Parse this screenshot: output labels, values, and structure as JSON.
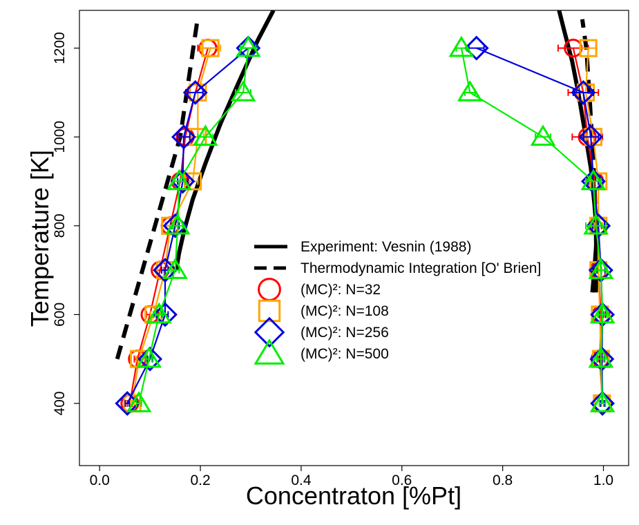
{
  "chart_data": {
    "type": "line",
    "title": "",
    "xlabel": "Concentraton [%Pt]",
    "ylabel": "Temperature [K]",
    "xlim": [
      -0.04,
      1.05
    ],
    "ylim": [
      260,
      1285
    ],
    "xticks": [
      0.0,
      0.2,
      0.4,
      0.6,
      0.8,
      1.0
    ],
    "xtick_labels": [
      "0.0",
      "0.2",
      "0.4",
      "0.6",
      "0.8",
      "1.0"
    ],
    "yticks": [
      400,
      600,
      800,
      1000,
      1200
    ],
    "ytick_labels": [
      "400",
      "600",
      "800",
      "1000",
      "1200"
    ],
    "grid": false,
    "legend_position": "center",
    "reference_curves": [
      {
        "name": "Experiment: Vesnin (1988)",
        "color": "#000000",
        "style": "solid",
        "branches": [
          {
            "x": [
              0.152,
              0.158,
              0.168,
              0.185,
              0.21,
              0.24,
              0.275,
              0.315,
              0.345
            ],
            "y": [
              700,
              740,
              790,
              860,
              940,
              1030,
              1120,
              1220,
              1285
            ]
          },
          {
            "x": [
              0.978,
              0.982,
              0.987,
              0.982,
              0.975,
              0.962,
              0.95,
              0.938,
              0.922,
              0.912
            ],
            "y": [
              650,
              700,
              780,
              850,
              930,
              1020,
              1100,
              1170,
              1240,
              1285
            ]
          }
        ]
      },
      {
        "name": "Thermodynamic Integration [O' Brien]",
        "color": "#000000",
        "style": "dashed",
        "branches": [
          {
            "x": [
              0.035,
              0.06,
              0.085,
              0.11,
              0.135,
              0.16,
              0.195
            ],
            "y": [
              500,
              600,
              700,
              800,
              900,
              1000,
              1270
            ]
          },
          {
            "x": [
              0.985,
              0.986,
              0.985,
              0.982,
              0.977,
              0.972,
              0.966,
              0.958
            ],
            "y": [
              650,
              700,
              800,
              900,
              1000,
              1100,
              1200,
              1265
            ]
          }
        ]
      }
    ],
    "series": [
      {
        "name": "(MC)²: N=32",
        "color": "#ff0000",
        "marker": "circle",
        "left": {
          "x": [
            0.06,
            0.075,
            0.1,
            0.12,
            0.14,
            0.16,
            0.17,
            0.19,
            0.215
          ],
          "y": [
            400,
            500,
            600,
            700,
            800,
            900,
            1000,
            1100,
            1200
          ],
          "err": [
            0.005,
            0.006,
            0.007,
            0.008,
            0.009,
            0.012,
            0.014,
            0.018,
            0.02
          ]
        },
        "right": {
          "x": [
            0.998,
            0.993,
            0.995,
            0.99,
            0.988,
            0.983,
            0.968,
            0.96,
            0.94
          ],
          "y": [
            400,
            500,
            600,
            700,
            800,
            900,
            1000,
            1100,
            1200
          ],
          "err": [
            0.003,
            0.004,
            0.005,
            0.006,
            0.008,
            0.01,
            0.03,
            0.03,
            0.03
          ]
        }
      },
      {
        "name": "(MC)²: N=108",
        "color": "#ffa500",
        "marker": "square",
        "left": {
          "x": [
            0.065,
            0.078,
            0.107,
            0.13,
            0.14,
            0.185,
            0.195,
            0.195,
            0.22
          ],
          "y": [
            400,
            500,
            600,
            700,
            800,
            900,
            1000,
            1100,
            1200
          ],
          "err": [
            0.004,
            0.005,
            0.006,
            0.007,
            0.008,
            0.01,
            0.012,
            0.015,
            0.02
          ]
        },
        "right": {
          "x": [
            0.997,
            0.995,
            0.993,
            0.99,
            0.99,
            0.99,
            0.98,
            0.965,
            0.97
          ],
          "y": [
            400,
            500,
            600,
            700,
            800,
            900,
            1000,
            1100,
            1200
          ],
          "err": [
            0.003,
            0.004,
            0.005,
            0.006,
            0.008,
            0.01,
            0.012,
            0.015,
            0.015
          ]
        }
      },
      {
        "name": "(MC)²: N=256",
        "color": "#0000dd",
        "marker": "diamond",
        "left": {
          "x": [
            0.055,
            0.1,
            0.13,
            0.13,
            0.15,
            0.165,
            0.167,
            0.19,
            0.295
          ],
          "y": [
            400,
            500,
            600,
            700,
            800,
            900,
            1000,
            1100,
            1200
          ],
          "err": [
            0.004,
            0.005,
            0.006,
            0.007,
            0.008,
            0.01,
            0.012,
            0.015,
            0.015
          ]
        },
        "right": {
          "x": [
            0.998,
            0.997,
            0.998,
            0.995,
            0.99,
            0.98,
            0.975,
            0.96,
            0.748
          ],
          "y": [
            400,
            500,
            600,
            700,
            800,
            900,
            1000,
            1100,
            1200
          ],
          "err": [
            0.004,
            0.005,
            0.006,
            0.008,
            0.012,
            0.01,
            0.015,
            0.02,
            0.015
          ]
        }
      },
      {
        "name": "(MC)²: N=500",
        "color": "#00ee00",
        "marker": "triangle",
        "left": {
          "x": [
            0.078,
            0.098,
            0.118,
            0.15,
            0.155,
            0.158,
            0.21,
            0.285,
            0.295
          ],
          "y": [
            400,
            500,
            600,
            700,
            800,
            900,
            1000,
            1100,
            1200
          ],
          "err": [
            0.005,
            0.006,
            0.007,
            0.008,
            0.01,
            0.012,
            0.015,
            0.015,
            0.015
          ]
        },
        "right": {
          "x": [
            0.998,
            0.995,
            0.998,
            0.995,
            0.985,
            0.98,
            0.88,
            0.735,
            0.718
          ],
          "y": [
            400,
            500,
            600,
            700,
            800,
            900,
            1000,
            1100,
            1200
          ],
          "err": [
            0.006,
            0.008,
            0.008,
            0.01,
            0.02,
            0.015,
            0.015,
            0.01,
            0.01
          ]
        }
      }
    ],
    "legend": [
      "Experiment: Vesnin (1988)",
      "Thermodynamic Integration [O' Brien]",
      "(MC)²: N=32",
      "(MC)²: N=108",
      "(MC)²: N=256",
      "(MC)²: N=500"
    ]
  }
}
